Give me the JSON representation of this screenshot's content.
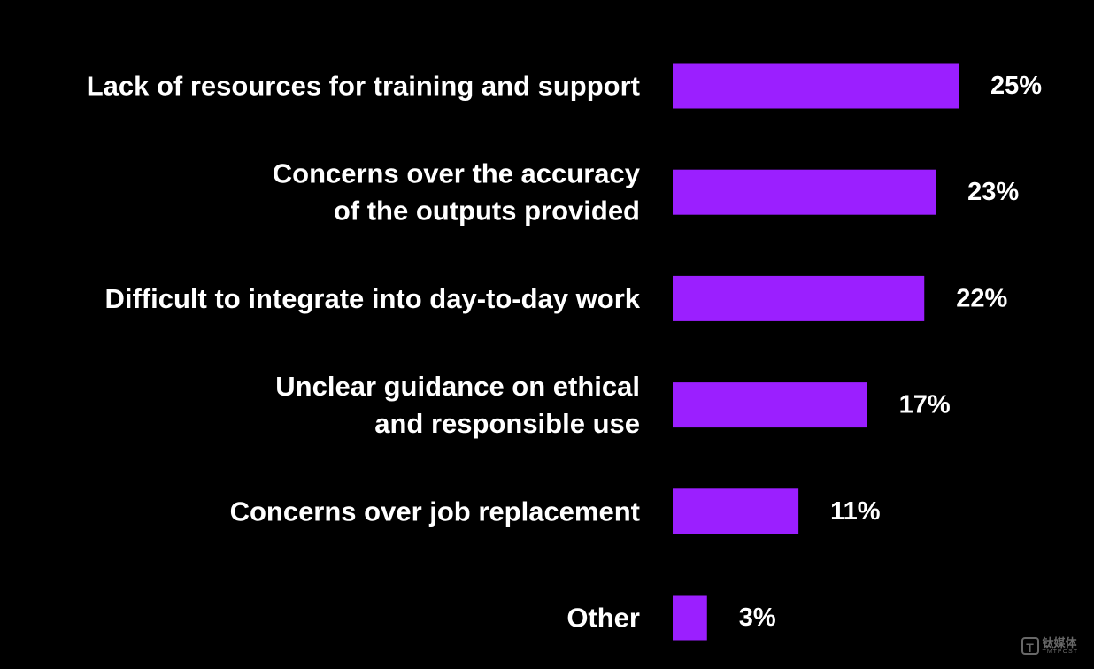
{
  "colors": {
    "background": "#000000",
    "bar": "#9b1fff",
    "text": "#ffffff"
  },
  "chart_data": {
    "type": "bar",
    "orientation": "horizontal",
    "title": "",
    "xlabel": "",
    "ylabel": "",
    "xlim": [
      0,
      25
    ],
    "grid": false,
    "legend": "none",
    "value_suffix": "%",
    "categories": [
      [
        "Lack of resources for training and support"
      ],
      [
        "Concerns over the accuracy",
        "of the outputs provided"
      ],
      [
        "Difficult to integrate into day-to-day work"
      ],
      [
        "Unclear guidance on ethical",
        "and responsible use"
      ],
      [
        "Concerns over job replacement"
      ],
      [
        "Other"
      ]
    ],
    "values": [
      25,
      23,
      22,
      17,
      11,
      3
    ],
    "data_labels": [
      "25%",
      "23%",
      "22%",
      "17%",
      "11%",
      "3%"
    ]
  },
  "watermark": {
    "icon": "tmtpost-logo-icon",
    "name_cn": "钛媒体",
    "name_en": "TMTPOST"
  }
}
